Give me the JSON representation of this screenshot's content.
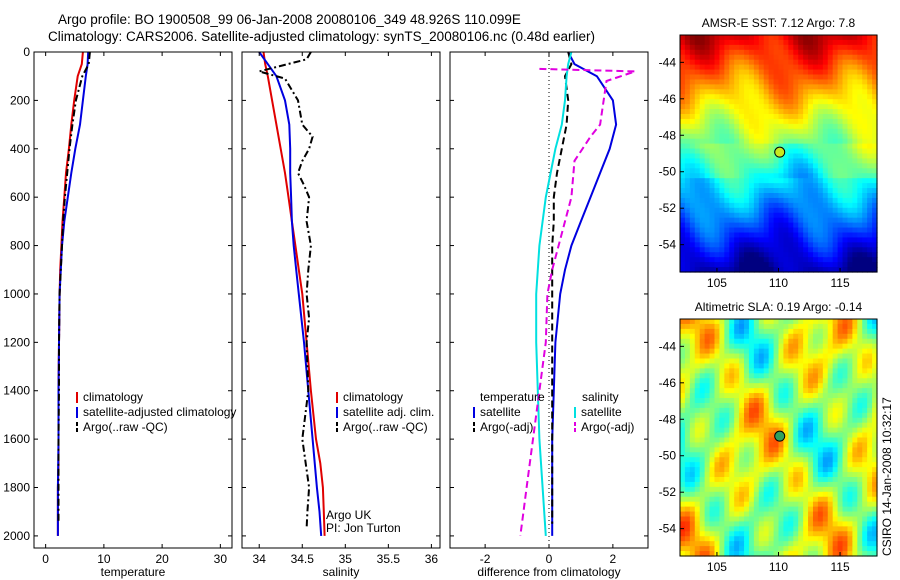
{
  "header": {
    "line1": "Argo profile: BO 1900508_99 06-Jan-2008 20080106_349 48.926S 110.099E",
    "line2": "Climatology: CARS2006. Satellite-adjusted climatology: synTS_20080106.nc (0.48d earlier)"
  },
  "chart_data": [
    {
      "type": "line",
      "xlabel": "temperature",
      "xlim": [
        -2,
        32
      ],
      "ylim": [
        0,
        2050
      ],
      "y_inverted": true,
      "xticks": [
        0,
        10,
        20,
        30
      ],
      "yticks": [
        0,
        200,
        400,
        600,
        800,
        1000,
        1200,
        1400,
        1600,
        1800,
        2000
      ],
      "legend": {
        "placement": "lower-right"
      },
      "series": [
        {
          "name": "climatology",
          "color": "#e00000",
          "style": "solid",
          "x": [
            6.4,
            6.2,
            5.5,
            4.9,
            4.4,
            4.0,
            3.5,
            3.2,
            2.9,
            2.7,
            2.5,
            2.4,
            2.3,
            2.2,
            2.2,
            2.2,
            2.1,
            2.1,
            2.1,
            2.1
          ],
          "y": [
            0,
            50,
            100,
            200,
            300,
            400,
            500,
            600,
            700,
            800,
            900,
            1000,
            1200,
            1400,
            1600,
            1700,
            1800,
            1900,
            1950,
            2000
          ]
        },
        {
          "name": "satellite-adjusted climatology",
          "color": "#0000e0",
          "style": "solid",
          "x": [
            7.3,
            7.2,
            6.9,
            6.4,
            5.9,
            5.1,
            4.4,
            3.8,
            3.2,
            2.8,
            2.6,
            2.4,
            2.3,
            2.2,
            2.2,
            2.1,
            2.1,
            2.1
          ],
          "y": [
            0,
            50,
            100,
            200,
            300,
            400,
            500,
            600,
            700,
            800,
            900,
            1000,
            1200,
            1400,
            1600,
            1800,
            1900,
            2000
          ]
        },
        {
          "name": "Argo(..raw -QC)",
          "color": "#000000",
          "style": "dashdot",
          "x": [
            7.6,
            7.4,
            6.3,
            5.2,
            4.6,
            4.1,
            3.7,
            3.3,
            3.0,
            2.8,
            2.6,
            2.4,
            2.3,
            2.3,
            2.2,
            2.2,
            2.2
          ],
          "y": [
            0,
            50,
            100,
            200,
            300,
            400,
            500,
            600,
            700,
            800,
            900,
            1000,
            1200,
            1400,
            1600,
            1800,
            1950
          ]
        }
      ]
    },
    {
      "type": "line",
      "xlabel": "salinity",
      "xlim": [
        33.8,
        36.1
      ],
      "ylim": [
        0,
        2050
      ],
      "y_inverted": true,
      "xticks": [
        34,
        34.5,
        35,
        35.5,
        36
      ],
      "legend": {
        "placement": "lower-right"
      },
      "annotations": [
        "Argo UK",
        "PI: Jon Turton"
      ],
      "series": [
        {
          "name": "climatology",
          "color": "#e00000",
          "style": "solid",
          "x": [
            34.05,
            34.07,
            34.1,
            34.15,
            34.2,
            34.25,
            34.3,
            34.34,
            34.38,
            34.42,
            34.46,
            34.5,
            34.55,
            34.6,
            34.66,
            34.71,
            34.74,
            34.75,
            34.76
          ],
          "y": [
            0,
            50,
            100,
            200,
            300,
            400,
            500,
            600,
            700,
            800,
            900,
            1000,
            1200,
            1400,
            1600,
            1700,
            1800,
            1900,
            2000
          ]
        },
        {
          "name": "satellite adj. clim.",
          "color": "#0000e0",
          "style": "solid",
          "x": [
            34.0,
            34.1,
            34.2,
            34.3,
            34.35,
            34.36,
            34.36,
            34.37,
            34.38,
            34.4,
            34.43,
            34.46,
            34.52,
            34.57,
            34.62,
            34.67,
            34.7,
            34.72
          ],
          "y": [
            0,
            50,
            100,
            200,
            300,
            400,
            500,
            600,
            700,
            800,
            900,
            1000,
            1200,
            1400,
            1600,
            1800,
            1900,
            2000
          ]
        },
        {
          "name": "Argo(..raw -QC)",
          "color": "#000000",
          "style": "dashdot",
          "x": [
            34.6,
            34.55,
            34.0,
            34.3,
            34.45,
            34.5,
            34.62,
            34.58,
            34.5,
            34.45,
            34.52,
            34.58,
            34.55,
            34.6,
            34.57,
            34.55,
            34.58,
            34.55,
            34.57,
            34.5,
            34.58,
            34.56,
            34.55
          ],
          "y": [
            0,
            30,
            80,
            110,
            200,
            300,
            350,
            400,
            450,
            500,
            550,
            600,
            700,
            800,
            900,
            1000,
            1100,
            1200,
            1400,
            1600,
            1800,
            1900,
            1970
          ]
        }
      ]
    },
    {
      "type": "line",
      "xlabel": "difference from climatology",
      "xlim": [
        -3.1,
        3.1
      ],
      "ylim": [
        0,
        2050
      ],
      "y_inverted": true,
      "xticks": [
        -2,
        0,
        2
      ],
      "legend": {
        "placement": "lower-center",
        "groups": [
          "temperature",
          "salinity"
        ]
      },
      "series": [
        {
          "name": "satellite",
          "group": "temperature",
          "color": "#0000e0",
          "style": "solid",
          "x": [
            0.6,
            0.8,
            1.5,
            2.0,
            2.1,
            1.9,
            1.6,
            1.3,
            1.0,
            0.7,
            0.5,
            0.35,
            0.2,
            0.15,
            0.1,
            0.1,
            0.1
          ],
          "y": [
            0,
            50,
            100,
            200,
            300,
            400,
            500,
            600,
            700,
            800,
            900,
            1000,
            1200,
            1400,
            1600,
            1800,
            2000
          ]
        },
        {
          "name": "Argo(-adj)",
          "group": "temperature",
          "color": "#000000",
          "style": "dashed",
          "x": [
            0.6,
            0.7,
            0.5,
            0.6,
            0.55,
            0.4,
            0.25,
            0.15,
            0.15,
            0.1,
            0.1,
            0.1,
            0.1,
            0.1,
            0.1,
            0.1
          ],
          "y": [
            0,
            50,
            100,
            200,
            300,
            400,
            500,
            600,
            700,
            800,
            900,
            1000,
            1200,
            1400,
            1600,
            1950
          ]
        },
        {
          "name": "satellite",
          "group": "salinity",
          "color": "#00e0e0",
          "style": "solid",
          "x": [
            0.7,
            0.6,
            0.55,
            0.5,
            0.4,
            0.2,
            0.05,
            -0.1,
            -0.2,
            -0.3,
            -0.35,
            -0.4,
            -0.4,
            -0.35,
            -0.3,
            -0.2,
            -0.1
          ],
          "y": [
            0,
            50,
            100,
            200,
            300,
            400,
            500,
            600,
            700,
            800,
            900,
            1000,
            1200,
            1400,
            1600,
            1800,
            2000
          ]
        },
        {
          "name": "Argo(-adj)",
          "group": "salinity",
          "color": "#e000e0",
          "style": "dashed",
          "x": [
            -0.3,
            2.7,
            1.8,
            1.6,
            1.3,
            0.8,
            0.7,
            0.5,
            0.3,
            0.1,
            -0.05,
            -0.1,
            -0.3,
            -0.5,
            -0.7,
            -0.8,
            -0.9
          ],
          "y": [
            70,
            80,
            120,
            300,
            350,
            450,
            600,
            700,
            800,
            900,
            1000,
            1200,
            1400,
            1600,
            1800,
            1900,
            2000
          ]
        }
      ]
    },
    {
      "type": "heatmap",
      "title": "AMSR-E SST: 7.12 Argo: 7.8",
      "xlim": [
        102,
        118
      ],
      "ylim": [
        -55.5,
        -42.5
      ],
      "xticks": [
        105,
        110,
        115
      ],
      "yticks": [
        -44,
        -46,
        -48,
        -50,
        -52,
        -54
      ],
      "marker": {
        "x": 110.099,
        "y": -48.926
      }
    },
    {
      "type": "heatmap",
      "title": "Altimetric SLA: 0.19 Argo: -0.14",
      "xlim": [
        102,
        118
      ],
      "ylim": [
        -55.5,
        -42.5
      ],
      "xticks": [
        105,
        110,
        115
      ],
      "yticks": [
        -44,
        -46,
        -48,
        -50,
        -52,
        -54
      ],
      "marker": {
        "x": 110.099,
        "y": -48.926
      },
      "side_label": "CSIRO 14-Jan-2008 10:32:17"
    }
  ]
}
